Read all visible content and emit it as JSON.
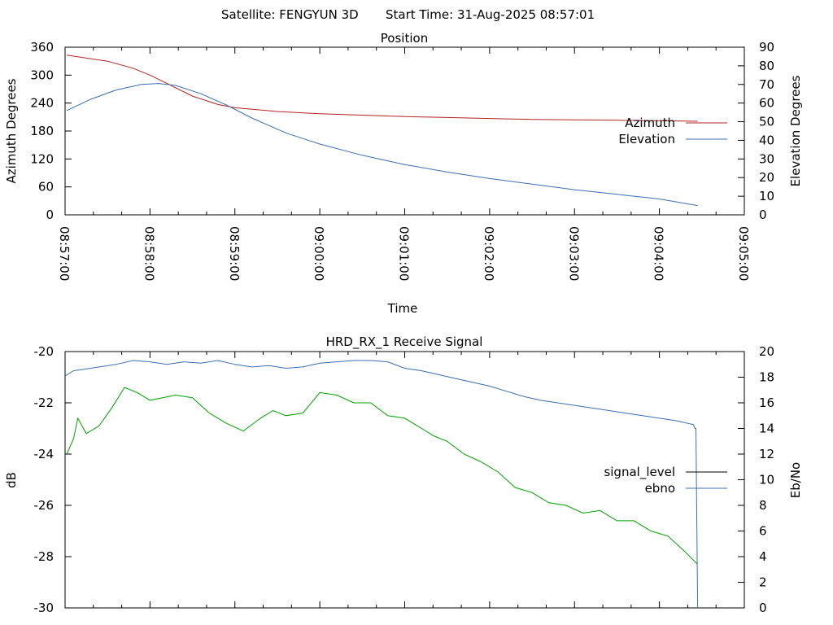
{
  "header": {
    "satellite": "Satellite: FENGYUN 3D",
    "start_time": "Start Time: 31-Aug-2025 08:57:01"
  },
  "chart_data": [
    {
      "type": "line",
      "title": "Position",
      "xlabel": "Time",
      "ylabel_left": "Azimuth Degrees",
      "ylabel_right": "Elevation Degrees",
      "x_ticks": [
        "08:57:00",
        "08:58:00",
        "08:59:00",
        "09:00:00",
        "09:01:00",
        "09:02:00",
        "09:03:00",
        "09:04:00",
        "09:05:00"
      ],
      "x_range_minutes": [
        0,
        8
      ],
      "y_left_ticks": [
        "0",
        "60",
        "120",
        "180",
        "240",
        "300",
        "360"
      ],
      "y_left_range": [
        0,
        360
      ],
      "y_right_ticks": [
        "0",
        "10",
        "20",
        "30",
        "40",
        "50",
        "60",
        "70",
        "80",
        "90"
      ],
      "y_right_range": [
        0,
        90
      ],
      "legend_position": "right",
      "series": [
        {
          "name": "Azimuth",
          "axis": "left",
          "color": "#b22222",
          "x": [
            0.02,
            0.5,
            0.8,
            1.0,
            1.2,
            1.5,
            1.8,
            2.0,
            2.5,
            3.0,
            3.5,
            4.0,
            4.5,
            5.0,
            5.5,
            6.0,
            6.5,
            7.0,
            7.45
          ],
          "y": [
            343,
            330,
            315,
            300,
            282,
            255,
            237,
            230,
            222,
            217,
            214,
            211,
            209,
            207,
            205,
            204,
            203,
            202,
            201
          ]
        },
        {
          "name": "Elevation",
          "axis": "right",
          "color": "#3a6fb0",
          "x": [
            0.02,
            0.3,
            0.6,
            0.9,
            1.1,
            1.3,
            1.6,
            1.9,
            2.2,
            2.6,
            3.0,
            3.5,
            4.0,
            4.5,
            5.0,
            5.5,
            6.0,
            6.5,
            7.0,
            7.45
          ],
          "y": [
            56,
            62,
            67,
            70,
            70.5,
            69.5,
            65,
            59,
            52,
            44,
            38,
            32,
            27,
            23,
            19.5,
            16.5,
            13.5,
            11,
            8.5,
            5
          ]
        }
      ]
    },
    {
      "type": "line",
      "title": "HRD_RX_1 Receive Signal",
      "ylabel_left": "dB",
      "ylabel_right": "Eb/No",
      "y_left_ticks": [
        "-30",
        "-28",
        "-26",
        "-24",
        "-22",
        "-20"
      ],
      "y_left_range": [
        -30,
        -20
      ],
      "y_right_ticks": [
        "0",
        "2",
        "4",
        "6",
        "8",
        "10",
        "12",
        "14",
        "16",
        "18",
        "20"
      ],
      "y_right_range": [
        0,
        20
      ],
      "x_range_minutes": [
        0,
        8
      ],
      "legend_position": "right",
      "series": [
        {
          "name": "signal_level",
          "axis": "left",
          "color": "#00a000",
          "legend_color": "#000000",
          "x": [
            0.02,
            0.1,
            0.15,
            0.25,
            0.4,
            0.55,
            0.7,
            0.85,
            1.0,
            1.15,
            1.3,
            1.5,
            1.7,
            1.9,
            2.1,
            2.3,
            2.45,
            2.6,
            2.8,
            3.0,
            3.2,
            3.4,
            3.6,
            3.8,
            4.0,
            4.2,
            4.35,
            4.5,
            4.7,
            4.9,
            5.1,
            5.3,
            5.5,
            5.7,
            5.9,
            6.1,
            6.3,
            6.5,
            6.7,
            6.9,
            7.1,
            7.3,
            7.45
          ],
          "y": [
            -24.0,
            -23.4,
            -22.6,
            -23.2,
            -22.9,
            -22.2,
            -21.4,
            -21.6,
            -21.9,
            -21.8,
            -21.7,
            -21.8,
            -22.4,
            -22.8,
            -23.1,
            -22.6,
            -22.3,
            -22.5,
            -22.4,
            -21.6,
            -21.7,
            -22.0,
            -22.0,
            -22.5,
            -22.6,
            -23.0,
            -23.3,
            -23.5,
            -24.0,
            -24.3,
            -24.7,
            -25.3,
            -25.5,
            -25.9,
            -26.0,
            -26.3,
            -26.2,
            -26.6,
            -26.6,
            -27.0,
            -27.2,
            -27.8,
            -28.3
          ]
        },
        {
          "name": "ebno",
          "axis": "right",
          "color": "#3a6fb0",
          "x": [
            0.0,
            0.1,
            0.2,
            0.4,
            0.6,
            0.8,
            1.0,
            1.2,
            1.4,
            1.6,
            1.8,
            2.0,
            2.2,
            2.4,
            2.6,
            2.8,
            3.0,
            3.2,
            3.4,
            3.6,
            3.8,
            4.0,
            4.2,
            4.4,
            4.6,
            4.8,
            5.0,
            5.2,
            5.4,
            5.6,
            5.8,
            6.0,
            6.2,
            6.4,
            6.6,
            6.8,
            7.0,
            7.2,
            7.4,
            7.42,
            7.43,
            7.45
          ],
          "y": [
            18.1,
            18.5,
            18.6,
            18.8,
            19.0,
            19.3,
            19.2,
            19.0,
            19.2,
            19.1,
            19.3,
            19.0,
            18.8,
            18.9,
            18.7,
            18.8,
            19.1,
            19.2,
            19.3,
            19.3,
            19.2,
            18.7,
            18.5,
            18.2,
            17.9,
            17.6,
            17.3,
            16.9,
            16.5,
            16.2,
            16.0,
            15.8,
            15.6,
            15.4,
            15.2,
            15.0,
            14.8,
            14.6,
            14.3,
            14.0,
            14.0,
            0
          ]
        }
      ]
    }
  ]
}
